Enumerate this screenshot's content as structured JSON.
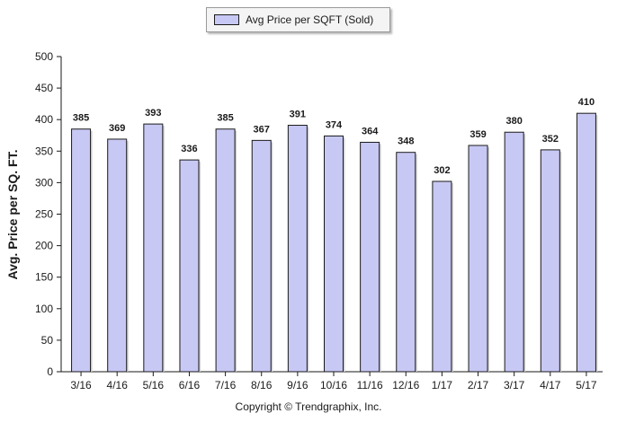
{
  "legend": {
    "label": "Avg Price per SQFT (Sold)"
  },
  "footer": {
    "copyright": "Copyright © Trendgraphix, Inc."
  },
  "colors": {
    "bar_fill": "#c8c8f4",
    "bar_stroke": "#1a1a1a"
  },
  "chart_data": {
    "type": "bar",
    "categories": [
      "3/16",
      "4/16",
      "5/16",
      "6/16",
      "7/16",
      "8/16",
      "9/16",
      "10/16",
      "11/16",
      "12/16",
      "1/17",
      "2/17",
      "3/17",
      "4/17",
      "5/17"
    ],
    "series": [
      {
        "name": "Avg Price per SQFT (Sold)",
        "values": [
          385,
          369,
          393,
          336,
          385,
          367,
          391,
          374,
          364,
          348,
          302,
          359,
          380,
          352,
          410
        ]
      }
    ],
    "title": "",
    "xlabel": "",
    "ylabel": "Avg. Price per SQ. FT.",
    "ylim": [
      0,
      500
    ],
    "yticks": [
      0,
      50,
      100,
      150,
      200,
      250,
      300,
      350,
      400,
      450,
      500
    ],
    "grid": false,
    "legend_position": "top"
  }
}
